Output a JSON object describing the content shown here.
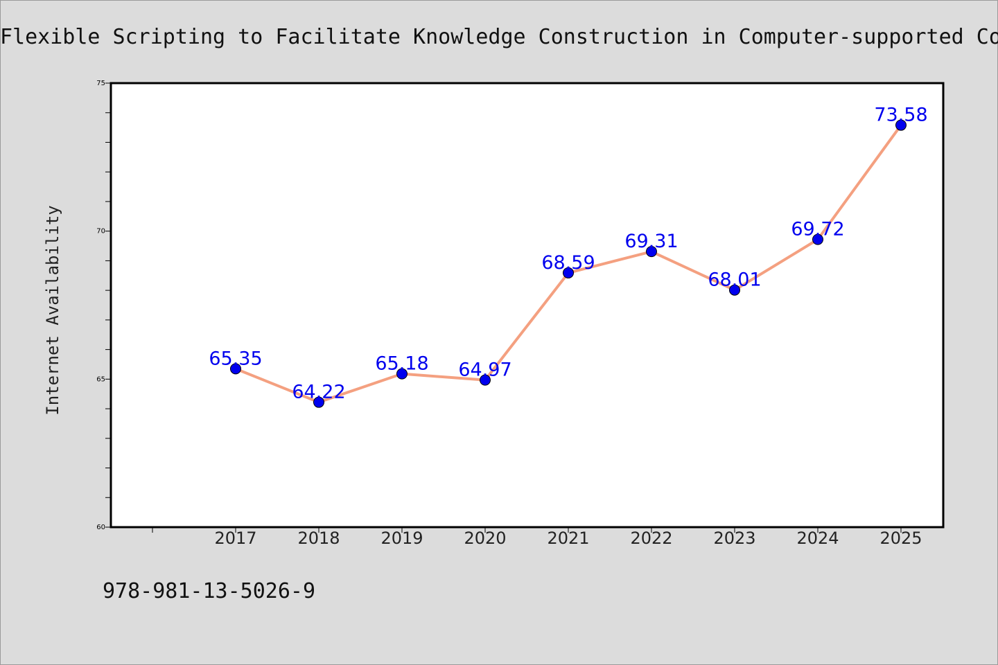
{
  "chart_data": {
    "type": "line",
    "title": "Flexible Scripting to Facilitate Knowledge Construction in Computer-supported Co",
    "xlabel": "",
    "ylabel": "Internet Availability",
    "categories": [
      "2017",
      "2018",
      "2019",
      "2020",
      "2021",
      "2022",
      "2023",
      "2024",
      "2025"
    ],
    "values": [
      65.35,
      64.22,
      65.18,
      64.97,
      68.59,
      69.31,
      68.01,
      69.72,
      73.58
    ],
    "data_labels": [
      "65.35",
      "64.22",
      "65.18",
      "64.97",
      "68.59",
      "69.31",
      "68.01",
      "69.72",
      "73.58"
    ],
    "ylim": [
      60,
      75
    ],
    "yticks": [
      "60",
      "65",
      "70",
      "75"
    ],
    "grid": false,
    "legend": "none",
    "line_color": "#f4a080",
    "marker_color": "#0000ee",
    "label_color": "#0000ee",
    "background": "#dcdcdc",
    "plot_background": "#ffffff"
  },
  "footer": {
    "isbn": "978-981-13-5026-9"
  }
}
